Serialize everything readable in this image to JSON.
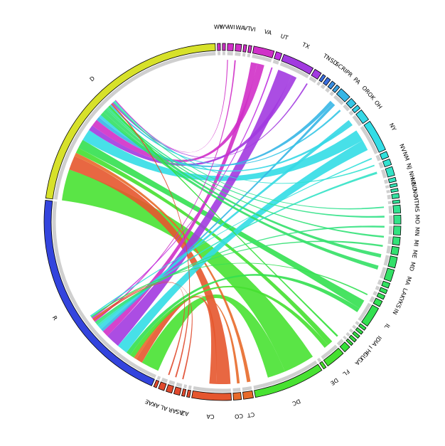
{
  "chart_data": {
    "type": "chord",
    "title": "",
    "segments": [
      {
        "label": "R",
        "weight": 46,
        "color": "#3344dd"
      },
      {
        "label": "D",
        "weight": 50,
        "color": "#d7e12a"
      },
      {
        "label": "WY",
        "weight": 0.6,
        "color": "#d030c8"
      },
      {
        "label": "WV",
        "weight": 0.6,
        "color": "#d030c8"
      },
      {
        "label": "WI",
        "weight": 1.2,
        "color": "#d030c8"
      },
      {
        "label": "WA",
        "weight": 1.2,
        "color": "#d030c8"
      },
      {
        "label": "VT",
        "weight": 0.6,
        "color": "#d030c8"
      },
      {
        "label": "VI",
        "weight": 0.6,
        "color": "#d030c8"
      },
      {
        "label": "VA",
        "weight": 4.2,
        "color": "#d030c8"
      },
      {
        "label": "UT",
        "weight": 1.2,
        "color": "#c030e0"
      },
      {
        "label": "TX",
        "weight": 6.5,
        "color": "#a23ae0"
      },
      {
        "label": "TN",
        "weight": 1.5,
        "color": "#a23ae0"
      },
      {
        "label": "SD",
        "weight": 0.6,
        "color": "#3a6ee0"
      },
      {
        "label": "SC",
        "weight": 0.8,
        "color": "#3a6ee0"
      },
      {
        "label": "RI",
        "weight": 0.8,
        "color": "#3a8ee0"
      },
      {
        "label": "PR",
        "weight": 0.7,
        "color": "#3aa0e0"
      },
      {
        "label": "PA",
        "weight": 2.4,
        "color": "#36b6e6"
      },
      {
        "label": "OR",
        "weight": 1.4,
        "color": "#36c6e6"
      },
      {
        "label": "OK",
        "weight": 0.8,
        "color": "#36d0e6"
      },
      {
        "label": "OH",
        "weight": 2.4,
        "color": "#36d8e6"
      },
      {
        "label": "NY",
        "weight": 6.5,
        "color": "#33dde6"
      },
      {
        "label": "NV",
        "weight": 1.2,
        "color": "#33e0dc"
      },
      {
        "label": "NM",
        "weight": 1.2,
        "color": "#33e2d0"
      },
      {
        "label": "NJ",
        "weight": 1.8,
        "color": "#33e2c6"
      },
      {
        "label": "NH",
        "weight": 0.8,
        "color": "#33e2bc"
      },
      {
        "label": "NE",
        "weight": 0.6,
        "color": "#33e2b2"
      },
      {
        "label": "ND",
        "weight": 0.6,
        "color": "#33e2a8"
      },
      {
        "label": "NC",
        "weight": 0.9,
        "color": "#33e2a0"
      },
      {
        "label": "MT",
        "weight": 0.6,
        "color": "#33e298"
      },
      {
        "label": "MS",
        "weight": 1.6,
        "color": "#33e290"
      },
      {
        "label": "MO",
        "weight": 1.8,
        "color": "#33e288"
      },
      {
        "label": "MN",
        "weight": 1.8,
        "color": "#33e280"
      },
      {
        "label": "MI",
        "weight": 1.6,
        "color": "#33e278"
      },
      {
        "label": "ME",
        "weight": 1.6,
        "color": "#33e070"
      },
      {
        "label": "MD",
        "weight": 2.2,
        "color": "#33e06a"
      },
      {
        "label": "MA",
        "weight": 2.4,
        "color": "#33e064"
      },
      {
        "label": "LA",
        "weight": 1.0,
        "color": "#33e060"
      },
      {
        "label": "KY",
        "weight": 0.8,
        "color": "#33e05c"
      },
      {
        "label": "KS",
        "weight": 0.8,
        "color": "#33e058"
      },
      {
        "label": "IN",
        "weight": 1.2,
        "color": "#33e054"
      },
      {
        "label": "IL",
        "weight": 4.2,
        "color": "#33e050"
      },
      {
        "label": "ID",
        "weight": 0.6,
        "color": "#33e04c"
      },
      {
        "label": "IA",
        "weight": 0.6,
        "color": "#33e048"
      },
      {
        "label": "I",
        "weight": 0.6,
        "color": "#33e044"
      },
      {
        "label": "HI",
        "weight": 0.6,
        "color": "#33e040"
      },
      {
        "label": "GU",
        "weight": 0.5,
        "color": "#33e03c"
      },
      {
        "label": "GA",
        "weight": 1.4,
        "color": "#33e038"
      },
      {
        "label": "FL",
        "weight": 4.0,
        "color": "#45e030"
      },
      {
        "label": "DE",
        "weight": 0.6,
        "color": "#4ae030"
      },
      {
        "label": "DC",
        "weight": 14.5,
        "color": "#48e232"
      },
      {
        "label": "CT",
        "weight": 2.0,
        "color": "#e86a2a"
      },
      {
        "label": "CO",
        "weight": 1.6,
        "color": "#e86a2a"
      },
      {
        "label": "CA",
        "weight": 8.0,
        "color": "#e5562e"
      },
      {
        "label": "AZ",
        "weight": 0.6,
        "color": "#e04a2e"
      },
      {
        "label": "AS",
        "weight": 0.6,
        "color": "#e04a2e"
      },
      {
        "label": "AR",
        "weight": 1.2,
        "color": "#e04a2e"
      },
      {
        "label": "AL",
        "weight": 1.2,
        "color": "#e04a2e"
      },
      {
        "label": "AK",
        "weight": 1.2,
        "color": "#e04a2e"
      },
      {
        "label": "AE",
        "weight": 0.6,
        "color": "#e04a2e"
      }
    ],
    "ribbons": [
      {
        "from": "DC",
        "to": "D",
        "value": 7.0
      },
      {
        "from": "DC",
        "to": "R",
        "value": 4.0
      },
      {
        "from": "CA",
        "to": "D",
        "value": 3.2
      },
      {
        "from": "CA",
        "to": "R",
        "value": 1.5
      },
      {
        "from": "CT",
        "to": "D",
        "value": 0.8
      },
      {
        "from": "CO",
        "to": "R",
        "value": 0.6
      },
      {
        "from": "FL",
        "to": "D",
        "value": 1.2
      },
      {
        "from": "FL",
        "to": "R",
        "value": 1.0
      },
      {
        "from": "IL",
        "to": "D",
        "value": 2.0
      },
      {
        "from": "IL",
        "to": "R",
        "value": 1.0
      },
      {
        "from": "NY",
        "to": "D",
        "value": 2.6
      },
      {
        "from": "NY",
        "to": "R",
        "value": 2.4
      },
      {
        "from": "TX",
        "to": "R",
        "value": 3.2
      },
      {
        "from": "TX",
        "to": "D",
        "value": 1.2
      },
      {
        "from": "VA",
        "to": "R",
        "value": 1.4
      },
      {
        "from": "VA",
        "to": "D",
        "value": 1.6
      },
      {
        "from": "PA",
        "to": "D",
        "value": 0.8
      },
      {
        "from": "PA",
        "to": "R",
        "value": 0.6
      },
      {
        "from": "OH",
        "to": "R",
        "value": 0.8
      },
      {
        "from": "OH",
        "to": "D",
        "value": 0.6
      },
      {
        "from": "MA",
        "to": "D",
        "value": 0.9
      },
      {
        "from": "MD",
        "to": "D",
        "value": 0.8
      },
      {
        "from": "NJ",
        "to": "R",
        "value": 0.5
      },
      {
        "from": "MI",
        "to": "D",
        "value": 0.4
      },
      {
        "from": "MN",
        "to": "R",
        "value": 0.4
      },
      {
        "from": "MO",
        "to": "D",
        "value": 0.4
      },
      {
        "from": "ME",
        "to": "R",
        "value": 0.4
      },
      {
        "from": "GA",
        "to": "D",
        "value": 0.4
      },
      {
        "from": "OR",
        "to": "D",
        "value": 0.4
      },
      {
        "from": "WA",
        "to": "R",
        "value": 0.3
      },
      {
        "from": "AR",
        "to": "R",
        "value": 0.3
      },
      {
        "from": "AL",
        "to": "D",
        "value": 0.3
      },
      {
        "from": "AK",
        "to": "R",
        "value": 0.3
      },
      {
        "from": "UT",
        "to": "R",
        "value": 0.3
      },
      {
        "from": "TN",
        "to": "D",
        "value": 0.3
      },
      {
        "from": "IN",
        "to": "R",
        "value": 0.3
      },
      {
        "from": "MS",
        "to": "D",
        "value": 0.3
      },
      {
        "from": "NM",
        "to": "D",
        "value": 0.3
      },
      {
        "from": "NV",
        "to": "R",
        "value": 0.3
      },
      {
        "from": "WI",
        "to": "D",
        "value": 0.2
      }
    ]
  }
}
